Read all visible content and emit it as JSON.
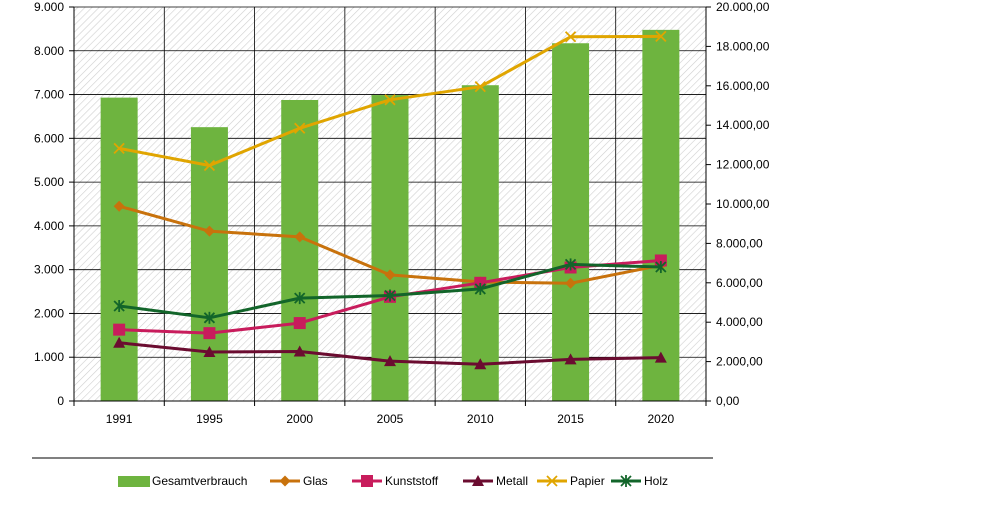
{
  "chart_data": {
    "type": "bar",
    "title": "",
    "categories": [
      "1991",
      "1995",
      "2000",
      "2005",
      "2010",
      "2015",
      "2020"
    ],
    "y_left": {
      "range": [
        0,
        9000
      ],
      "ticks": [
        0,
        1000,
        2000,
        3000,
        4000,
        5000,
        6000,
        7000,
        8000,
        9000
      ],
      "tick_labels": [
        "0",
        "1.000",
        "2.000",
        "3.000",
        "4.000",
        "5.000",
        "6.000",
        "7.000",
        "8.000",
        "9.000"
      ]
    },
    "y_right": {
      "range": [
        0,
        20000
      ],
      "ticks": [
        0,
        2000,
        4000,
        6000,
        8000,
        10000,
        12000,
        14000,
        16000,
        18000,
        20000
      ],
      "tick_labels": [
        "0,00",
        "2.000,00",
        "4.000,00",
        "6.000,00",
        "8.000,00",
        "10.000,00",
        "12.000,00",
        "14.000,00",
        "16.000,00",
        "18.000,00",
        "20.000,00"
      ]
    },
    "bars": {
      "name": "Gesamtverbrauch",
      "axis": "right",
      "color": "#6eb43f",
      "values": [
        15400,
        13900,
        15280,
        15530,
        16030,
        18160,
        18840
      ]
    },
    "series": [
      {
        "name": "Glas",
        "axis": "left",
        "type": "line",
        "marker": "diamond",
        "color": "#c8720c",
        "values": [
          4450,
          3880,
          3750,
          2880,
          2720,
          2690,
          3100
        ]
      },
      {
        "name": "Kunststoff",
        "axis": "left",
        "type": "line",
        "marker": "square",
        "color": "#c81c5c",
        "values": [
          1630,
          1550,
          1780,
          2380,
          2700,
          3050,
          3210
        ]
      },
      {
        "name": "Metall",
        "axis": "left",
        "type": "line",
        "marker": "triangle",
        "color": "#6b0c30",
        "values": [
          1330,
          1120,
          1130,
          910,
          840,
          950,
          990
        ]
      },
      {
        "name": "Papier",
        "axis": "left",
        "type": "line",
        "marker": "x",
        "color": "#e0a500",
        "values": [
          5770,
          5380,
          6230,
          6880,
          7180,
          8320,
          8330
        ]
      },
      {
        "name": "Holz",
        "axis": "left",
        "type": "line",
        "marker": "star",
        "color": "#12652a",
        "values": [
          2170,
          1900,
          2350,
          2410,
          2560,
          3120,
          3060
        ]
      }
    ],
    "grid": true,
    "legend_position": "bottom"
  },
  "colors": {
    "grid": "#000000",
    "plot_hatch": "#c9c9c9",
    "bar": "#6eb43f"
  }
}
